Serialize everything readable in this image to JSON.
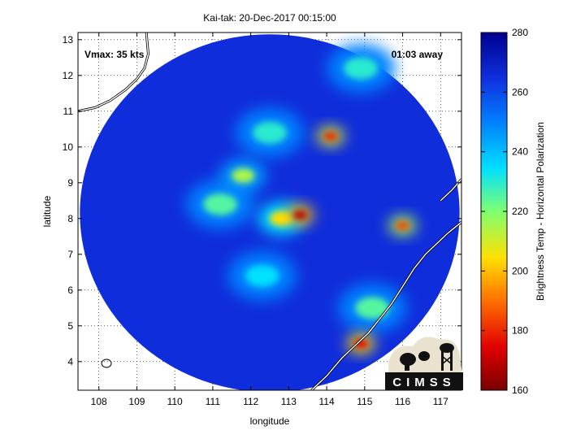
{
  "chart_data": {
    "type": "heatmap",
    "title": "Kai-tak: 20-Dec-2017 00:15:00",
    "xlabel": "longitude",
    "ylabel": "latitude",
    "xlim": [
      107.45,
      117.55
    ],
    "ylim": [
      3.2,
      13.2
    ],
    "xticks": [
      "108",
      "109",
      "110",
      "111",
      "112",
      "113",
      "114",
      "115",
      "116",
      "117"
    ],
    "yticks": [
      "4",
      "5",
      "6",
      "7",
      "8",
      "9",
      "10",
      "11",
      "12",
      "13"
    ],
    "annotations": {
      "vmax": "Vmax: 35 kts",
      "away": "01:03 away"
    },
    "colorbar": {
      "label": "Brightness Temp - Horizontal Polarization",
      "range": [
        160,
        280
      ],
      "ticks": [
        "280",
        "260",
        "240",
        "220",
        "200",
        "180",
        "160"
      ]
    },
    "swath": {
      "center_lon": 112.5,
      "center_lat": 8.15,
      "radius_deg": 5.0
    },
    "features": [
      {
        "lon": 113.3,
        "lat": 8.1,
        "tb": 168
      },
      {
        "lon": 114.1,
        "lat": 10.3,
        "tb": 180
      },
      {
        "lon": 114.9,
        "lat": 4.5,
        "tb": 175
      },
      {
        "lon": 116.0,
        "lat": 7.8,
        "tb": 185
      },
      {
        "lon": 112.8,
        "lat": 8.0,
        "tb": 205
      },
      {
        "lon": 111.8,
        "lat": 9.2,
        "tb": 215
      },
      {
        "lon": 111.2,
        "lat": 8.4,
        "tb": 225
      },
      {
        "lon": 112.5,
        "lat": 10.4,
        "tb": 230
      },
      {
        "lon": 114.9,
        "lat": 12.2,
        "tb": 230
      },
      {
        "lon": 112.3,
        "lat": 6.4,
        "tb": 235
      },
      {
        "lon": 115.2,
        "lat": 5.5,
        "tb": 225
      }
    ]
  },
  "logo": {
    "text": "CIMSS"
  }
}
